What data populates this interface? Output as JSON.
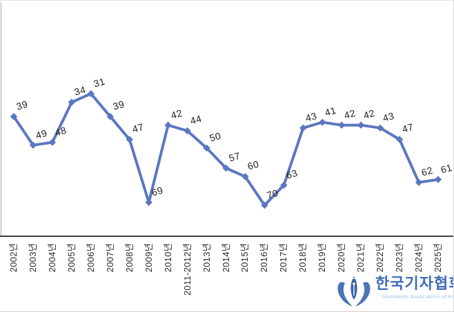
{
  "chart_data": {
    "type": "line",
    "title": "",
    "xlabel": "",
    "ylabel": "",
    "legend": "off",
    "grid": "off",
    "y_inverted": true,
    "value_range_observed": [
      31,
      70
    ],
    "line_color": "#5b77c0",
    "marker_shape": "diamond",
    "label_color": "#1f1f1f",
    "categories": [
      "2002년",
      "2003년",
      "2004년",
      "2005년",
      "2006년",
      "2007년",
      "2008년",
      "2009년",
      "2010년",
      "2011-2012년",
      "2013년",
      "2014년",
      "2015년",
      "2016년",
      "2017년",
      "2018년",
      "2019년",
      "2020년",
      "2021년",
      "2022년",
      "2023년",
      "2024년",
      "2025년"
    ],
    "values": [
      39,
      49,
      48,
      34,
      31,
      39,
      47,
      69,
      42,
      44,
      50,
      57,
      60,
      70,
      63,
      43,
      41,
      42,
      42,
      43,
      47,
      62,
      61
    ]
  },
  "logo": {
    "korean_name": "한국기자협회",
    "english_name": "Journalists Association of Korea",
    "brand_color": "#3f6db6",
    "light_color": "#a2bddd",
    "icon_color": "#4a76b8"
  }
}
